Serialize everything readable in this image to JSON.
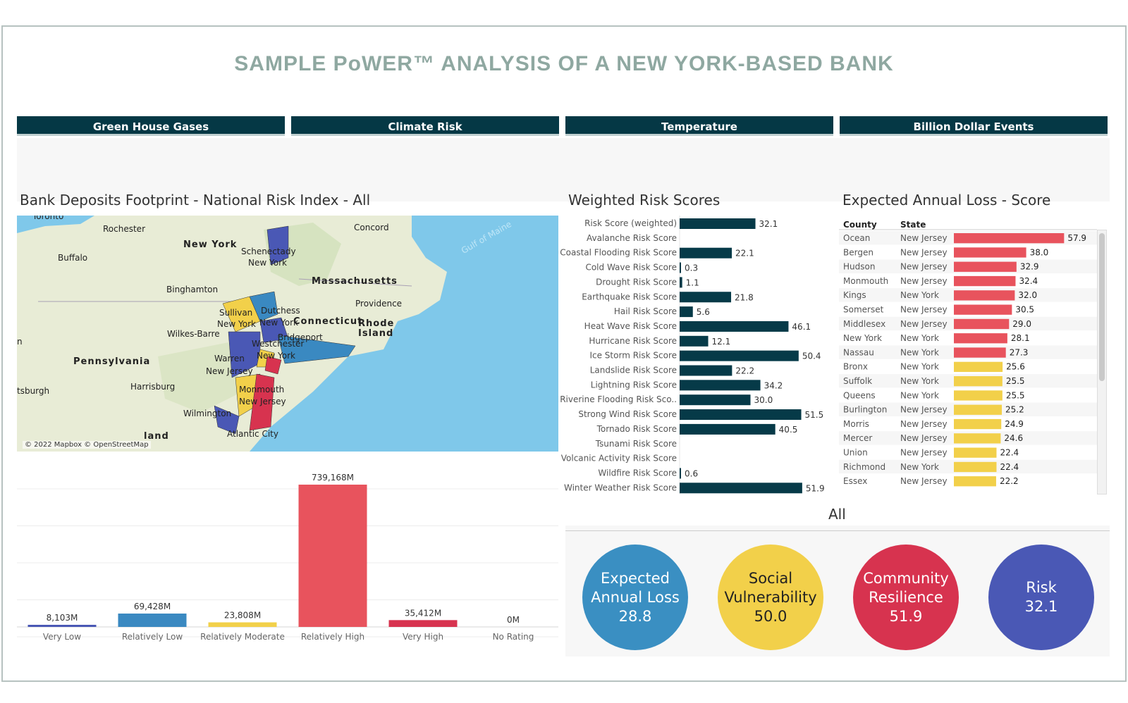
{
  "page_title": "SAMPLE PoWER™ ANALYSIS OF A NEW YORK-BASED BANK",
  "tabs": [
    {
      "label": "Green House Gases"
    },
    {
      "label": "Climate Risk"
    },
    {
      "label": "Temperature"
    },
    {
      "label": "Billion Dollar Events"
    }
  ],
  "map_section": {
    "title": "Bank Deposits Footprint - National Risk Index -  All",
    "credit": "© 2022 Mapbox © OpenStreetMap",
    "labels": {
      "toronto": "Toronto",
      "rochester": "Rochester",
      "buffalo": "Buffalo",
      "new_york_state": "New York",
      "schenectady": "Schenectady",
      "new_york_county": "New York",
      "concord": "Concord",
      "massachusetts": "Massachusetts",
      "binghamton": "Binghamton",
      "providence": "Providence",
      "sullivan": "Sullivan",
      "dutchess": "Dutchess",
      "sullivan_state": "New York",
      "dutchess_state": "New York",
      "connecticut": "Connecticut",
      "rhode_island_1": "Rhode",
      "rhode_island_2": "Island",
      "bridgeport": "Bridgeport",
      "westchester": "Westchester",
      "wilkes_barre": "Wilkes-Barre",
      "pennsylvania": "Pennsylvania",
      "warren": "Warren",
      "warren_state": "New Jersey",
      "ny_city": "New York",
      "harrisburg": "Harrisburg",
      "monmouth": "Monmouth",
      "monmouth_state": "New Jersey",
      "pittsburgh": "tsburgh",
      "wilmington": "Wilmington",
      "atlantic_city": "Atlantic City",
      "maryland": "land",
      "gulf": "Gulf of Maine",
      "west_edge": "n"
    }
  },
  "deposits_chart": {
    "chart_data": {
      "type": "bar",
      "categories": [
        "Very Low",
        "Relatively Low",
        "Relatively Moderate",
        "Relatively High",
        "Very High",
        "No Rating"
      ],
      "values": [
        8103,
        69428,
        23808,
        739168,
        35412,
        0
      ],
      "value_labels": [
        "8,103M",
        "69,428M",
        "23,808M",
        "739,168M",
        "35,412M",
        "0M"
      ],
      "colors": [
        "#4a58b5",
        "#3a89c1",
        "#f2d04a",
        "#e8535d",
        "#d7334f",
        "#cccccc"
      ],
      "ylim": [
        0,
        739168
      ],
      "grid": true
    }
  },
  "weighted_section": {
    "title": "Weighted Risk Scores",
    "chart_data": {
      "type": "bar",
      "orientation": "horizontal",
      "categories": [
        "Risk Score (weighted)",
        "Avalanche Risk Score",
        "Coastal Flooding Risk Score",
        "Cold Wave Risk Score",
        "Drought Risk Score",
        "Earthquake Risk Score",
        "Hail Risk Score",
        "Heat Wave Risk Score",
        "Hurricane Risk Score",
        "Ice Storm Risk Score",
        "Landslide Risk Score",
        "Lightning Risk Score",
        "Riverine Flooding Risk Sco..",
        "Strong Wind Risk Score",
        "Tornado Risk Score",
        "Tsunami Risk Score",
        "Volcanic Activity Risk Score",
        "Wildfire Risk Score",
        "Winter Weather Risk Score"
      ],
      "values": [
        32.1,
        null,
        22.1,
        0.3,
        1.1,
        21.8,
        5.6,
        46.1,
        12.1,
        50.4,
        22.2,
        34.2,
        30.0,
        51.5,
        40.5,
        null,
        null,
        0.6,
        51.9
      ],
      "value_labels": [
        "32.1",
        "",
        "22.1",
        "0.3",
        "1.1",
        "21.8",
        "5.6",
        "46.1",
        "12.1",
        "50.4",
        "22.2",
        "34.2",
        "30.0",
        "51.5",
        "40.5",
        "",
        "",
        "0.6",
        "51.9"
      ],
      "color": "#063a48"
    }
  },
  "eal_section": {
    "title": "Expected Annual Loss -  Score",
    "headers": {
      "county": "County",
      "state": "State"
    },
    "chart_data": {
      "type": "bar",
      "orientation": "horizontal",
      "rows": [
        {
          "county": "Ocean",
          "state": "New Jersey",
          "value": 57.9,
          "label": "57.9"
        },
        {
          "county": "Bergen",
          "state": "New Jersey",
          "value": 38.0,
          "label": "38.0"
        },
        {
          "county": "Hudson",
          "state": "New Jersey",
          "value": 32.9,
          "label": "32.9"
        },
        {
          "county": "Monmouth",
          "state": "New Jersey",
          "value": 32.4,
          "label": "32.4"
        },
        {
          "county": "Kings",
          "state": "New York",
          "value": 32.0,
          "label": "32.0"
        },
        {
          "county": "Somerset",
          "state": "New Jersey",
          "value": 30.5,
          "label": "30.5"
        },
        {
          "county": "Middlesex",
          "state": "New Jersey",
          "value": 29.0,
          "label": "29.0"
        },
        {
          "county": "New York",
          "state": "New York",
          "value": 28.1,
          "label": "28.1"
        },
        {
          "county": "Nassau",
          "state": "New York",
          "value": 27.3,
          "label": "27.3"
        },
        {
          "county": "Bronx",
          "state": "New York",
          "value": 25.6,
          "label": "25.6"
        },
        {
          "county": "Suffolk",
          "state": "New York",
          "value": 25.5,
          "label": "25.5"
        },
        {
          "county": "Queens",
          "state": "New York",
          "value": 25.5,
          "label": "25.5"
        },
        {
          "county": "Burlington",
          "state": "New Jersey",
          "value": 25.2,
          "label": "25.2"
        },
        {
          "county": "Morris",
          "state": "New Jersey",
          "value": 24.9,
          "label": "24.9"
        },
        {
          "county": "Mercer",
          "state": "New Jersey",
          "value": 24.6,
          "label": "24.6"
        },
        {
          "county": "Union",
          "state": "New Jersey",
          "value": 22.4,
          "label": "22.4"
        },
        {
          "county": "Richmond",
          "state": "New York",
          "value": 22.4,
          "label": "22.4"
        },
        {
          "county": "Essex",
          "state": "New Jersey",
          "value": 22.2,
          "label": "22.2"
        }
      ],
      "color_high": "#e8535d",
      "color_moderate": "#f2d04a"
    }
  },
  "summary": {
    "filter_label": "All",
    "circles": [
      {
        "line1": "Expected",
        "line2": "Annual Loss",
        "value": "28.8",
        "color": "#3a8fc2",
        "text_color": "#ffffff"
      },
      {
        "line1": "Social",
        "line2": "Vulnerability",
        "value": "50.0",
        "color": "#f2d04a",
        "text_color": "#222222"
      },
      {
        "line1": "Community",
        "line2": "Resilience",
        "value": "51.9",
        "color": "#d7334f",
        "text_color": "#ffffff"
      },
      {
        "line1": "Risk",
        "line2": "",
        "value": "32.1",
        "color": "#4a58b5",
        "text_color": "#ffffff"
      }
    ]
  }
}
